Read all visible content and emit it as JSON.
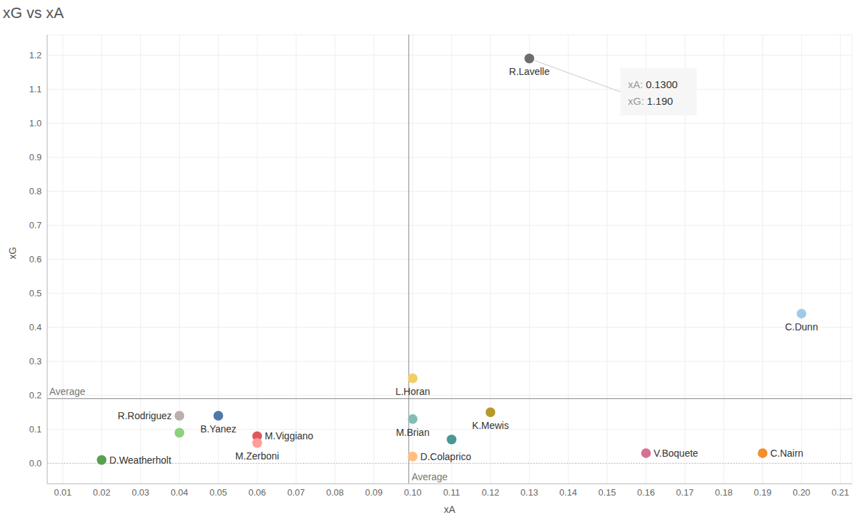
{
  "chart_data": {
    "type": "scatter",
    "title": "xG vs xA",
    "x_label": "xA",
    "y_label": "xG",
    "labels": [
      "R.Lavelle",
      "C.Dunn",
      "L.Horan",
      "K.Mewis",
      "M.Brian",
      null,
      "D.Colaprico",
      "V.Boquete",
      "C.Nairn",
      "R.Rodriguez",
      null,
      "B.Yanez",
      "M.Viggiano",
      "M.Zerboni",
      "D.Weatherholt"
    ],
    "x": [
      0.13,
      0.2,
      0.1,
      0.12,
      0.1,
      0.11,
      0.1,
      0.16,
      0.19,
      0.04,
      0.04,
      0.05,
      0.06,
      0.06,
      0.02
    ],
    "values": [
      1.19,
      0.44,
      0.25,
      0.15,
      0.13,
      0.07,
      0.02,
      0.03,
      0.03,
      0.14,
      0.09,
      0.14,
      0.08,
      0.06,
      0.01
    ],
    "colors": [
      "#706c6c",
      "#a0cbe8",
      "#f1ce63",
      "#b6992d",
      "#86bcb6",
      "#499894",
      "#ffbe7d",
      "#d37295",
      "#f28e2b",
      "#bab0ac",
      "#8cd17d",
      "#4e79a7",
      "#e15759",
      "#ff9d9a",
      "#59a14f"
    ],
    "xlim": [
      0.006,
      0.213
    ],
    "xticks": [
      0.01,
      0.02,
      0.03,
      0.04,
      0.05,
      0.06,
      0.07,
      0.08,
      0.09,
      {
        "value": 0.1,
        "label": "0.10"
      },
      0.11,
      0.12,
      0.13,
      0.14,
      0.15,
      0.16,
      0.17,
      0.18,
      0.19,
      {
        "value": 0.2,
        "label": "0.20"
      },
      0.21
    ],
    "ylim": [
      -0.06,
      1.26
    ],
    "yticks": [
      {
        "value": 0,
        "label": "0.0"
      },
      0.1,
      0.2,
      0.3,
      0.4,
      0.5,
      0.6,
      0.7,
      0.8,
      0.9,
      {
        "value": 1,
        "label": "1.0"
      },
      1.1,
      1.2
    ],
    "reference_lines": [
      {
        "axis": "x",
        "value": 0.099,
        "label": "Average"
      },
      {
        "axis": "y",
        "value": 0.19,
        "label": "Average"
      }
    ],
    "annotation": {
      "x": 0.13,
      "y": 1.19,
      "lines": [
        {
          "label": "xA:",
          "value": "0.1300"
        },
        {
          "label": "xG:",
          "value": "1.190"
        }
      ]
    },
    "grid": true
  }
}
